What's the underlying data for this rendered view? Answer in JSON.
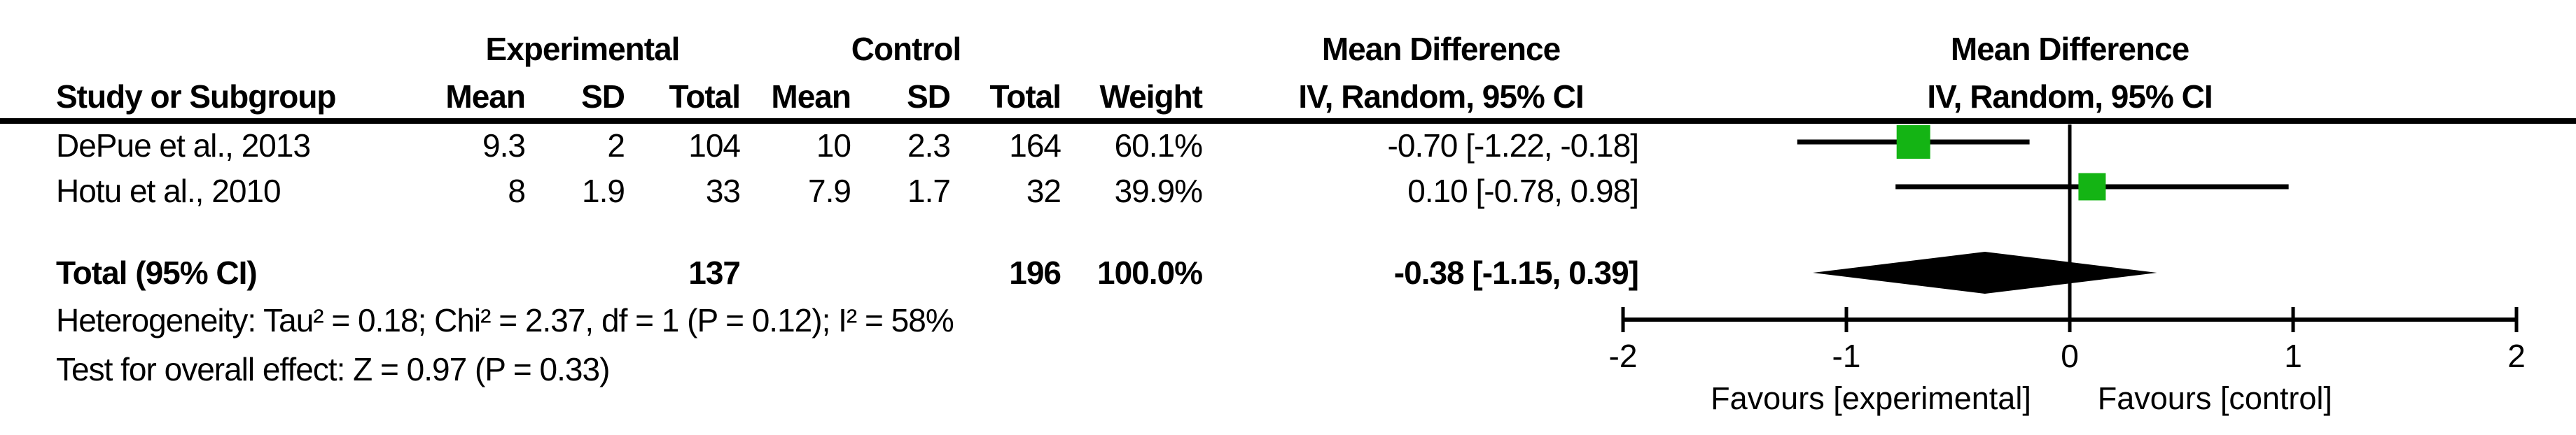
{
  "table": {
    "group_headers": {
      "experimental": "Experimental",
      "control": "Control",
      "effect_line1": "Mean Difference",
      "effect_line2": "IV, Random, 95% CI"
    },
    "col_headers": {
      "study": "Study or Subgroup",
      "mean": "Mean",
      "sd": "SD",
      "total": "Total",
      "c_mean": "Mean",
      "c_sd": "SD",
      "c_total": "Total",
      "weight": "Weight",
      "effect": "IV, Random, 95% CI"
    },
    "rows": [
      {
        "study": "DePue et al., 2013",
        "mean": "9.3",
        "sd": "2",
        "total": "104",
        "c_mean": "10",
        "c_sd": "2.3",
        "c_total": "164",
        "weight": "60.1%",
        "md_ci": "-0.70 [-1.22, -0.18]"
      },
      {
        "study": "Hotu et al., 2010",
        "mean": "8",
        "sd": "1.9",
        "total": "33",
        "c_mean": "7.9",
        "c_sd": "1.7",
        "c_total": "32",
        "weight": "39.9%",
        "md_ci": "0.10 [-0.78, 0.98]"
      }
    ],
    "total_row": {
      "label": "Total (95% CI)",
      "total": "137",
      "c_total": "196",
      "weight": "100.0%",
      "md_ci": "-0.38 [-1.15, 0.39]"
    },
    "heterogeneity": "Heterogeneity: Tau² = 0.18; Chi² = 2.37, df = 1 (P = 0.12); I² = 58%",
    "overall_effect": "Test for overall effect: Z = 0.97 (P = 0.33)"
  },
  "plot_header": {
    "line1": "Mean Difference",
    "line2": "IV, Random, 95% CI"
  },
  "chart_data": {
    "type": "forest",
    "title": "Mean Difference",
    "subtitle": "IV, Random, 95% CI",
    "xlim": [
      -2,
      2
    ],
    "ticks": [
      "-2",
      "-1",
      "0",
      "1",
      "2"
    ],
    "tick_values": [
      -2,
      -1,
      0,
      1,
      2
    ],
    "x_axis_labels": {
      "left": "Favours [experimental]",
      "right": "Favours [control]"
    },
    "studies": [
      {
        "name": "DePue et al., 2013",
        "md": -0.7,
        "ci_low": -1.22,
        "ci_high": -0.18,
        "weight": 60.1
      },
      {
        "name": "Hotu et al., 2010",
        "md": 0.1,
        "ci_low": -0.78,
        "ci_high": 0.98,
        "weight": 39.9
      }
    ],
    "total": {
      "name": "Total (95% CI)",
      "md": -0.38,
      "ci_low": -1.15,
      "ci_high": 0.39,
      "weight": 100.0
    },
    "marker_color": "#14B414",
    "line_color": "#000000",
    "diamond_color": "#000000"
  }
}
